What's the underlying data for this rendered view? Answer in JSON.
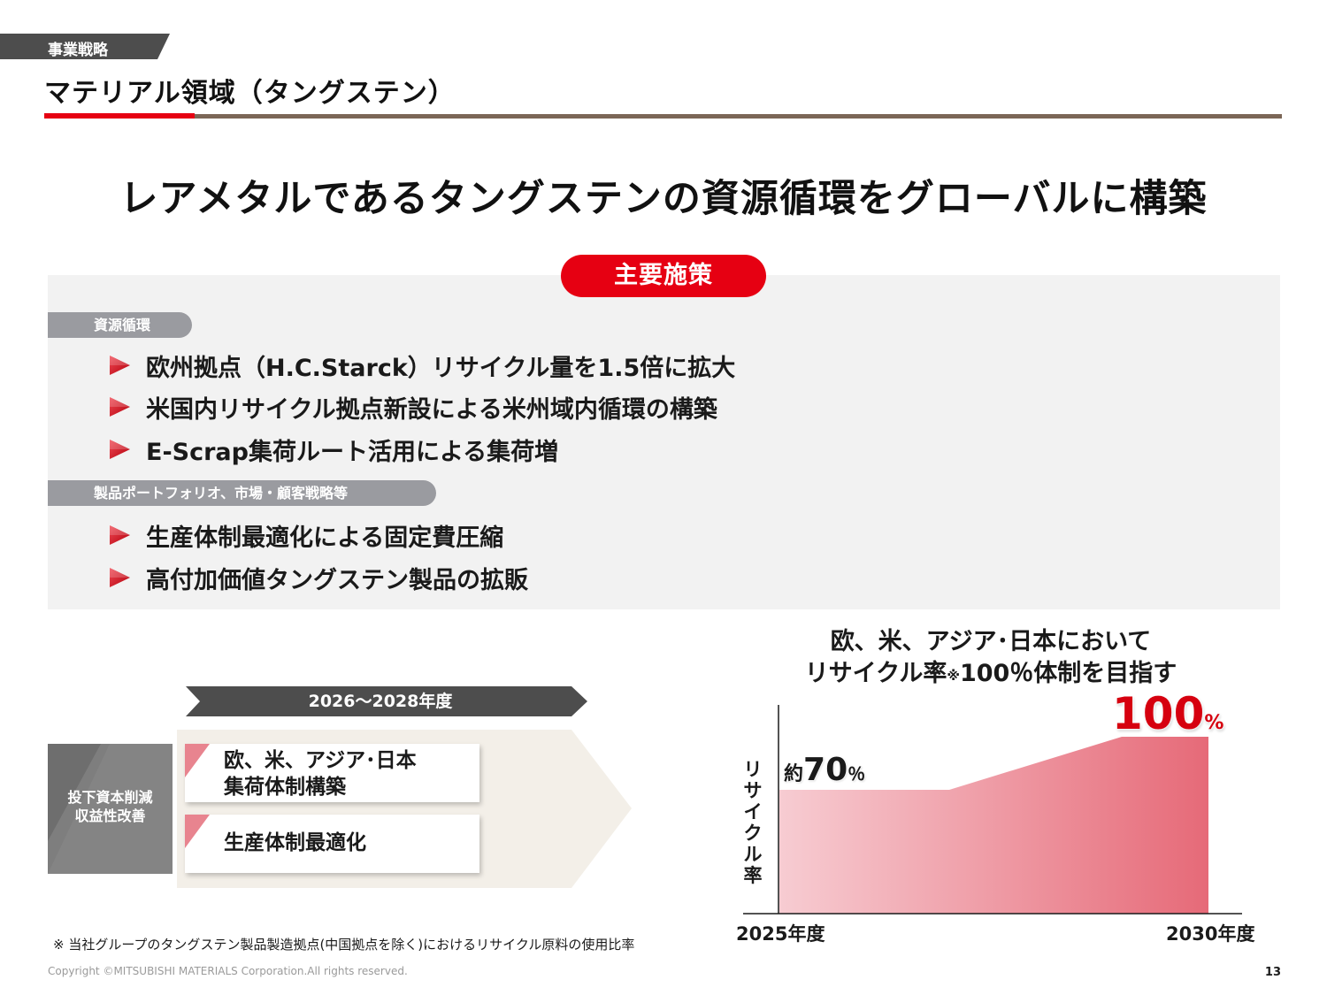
{
  "header": {
    "section_tag": "事業戦略",
    "title": "マテリアル領域（タングステン）"
  },
  "headline": "レアメタルであるタングステンの資源循環をグローバルに構築",
  "measures": {
    "pill_label": "主要施策",
    "groups": [
      {
        "label": "資源循環",
        "items": [
          "欧州拠点（H.C.Starck）リサイクル量を1.5倍に拡大",
          "米国内リサイクル拠点新設による米州域内循環の構築",
          "E-Scrap集荷ルート活用による集荷増"
        ]
      },
      {
        "label": "製品ポートフォリオ、市場・顧客戦略等",
        "items": [
          "生産体制最適化による固定費圧縮",
          "高付加価値タングステン製品の拡販"
        ]
      }
    ]
  },
  "roadmap": {
    "period": "2026～2028年度",
    "goal_line1": "投下資本削減",
    "goal_line2": "収益性改善",
    "steps": [
      {
        "line1": "欧、米、アジア･日本",
        "line2": "集荷体制構築"
      },
      {
        "line1": "生産体制最適化",
        "line2": ""
      }
    ]
  },
  "chart": {
    "title_line1": "欧、米、アジア･日本において",
    "title_line2_pre": "リサイクル率",
    "title_line2_mark": "※",
    "title_line2_post": "100％体制を目指す",
    "ylabel_chars": [
      "リ",
      "サ",
      "イ",
      "ク",
      "ル",
      "率"
    ],
    "start_label": {
      "prefix": "約",
      "value": "70",
      "unit": "％"
    },
    "end_label": {
      "value": "100",
      "unit": "%"
    }
  },
  "chart_data": {
    "type": "area",
    "title": "欧、米、アジア･日本において リサイクル率※100％体制を目指す",
    "ylabel": "リサイクル率",
    "xlabel": "",
    "x": [
      "2025年度",
      "2030年度"
    ],
    "series": [
      {
        "values": [
          70,
          100
        ]
      }
    ],
    "annotations": [
      "約70％",
      "100%"
    ],
    "colors": {
      "fill_start": "#f7ccd2",
      "fill_end": "#e66a78"
    },
    "grid": false
  },
  "footnote": "※ 当社グループのタングステン製品製造拠点(中国拠点を除く)におけるリサイクル原料の使用比率",
  "copyright": "Copyright ©MITSUBISHI MATERIALS Corporation.All rights reserved.",
  "page_number": "13",
  "colors": {
    "accent_red": "#e60012",
    "rule_brown": "#7b6656",
    "panel_gray": "#f2f2f2",
    "tag_gray": "#9a9ba0",
    "banner_dark": "#4d4d4d"
  },
  "icons": {
    "bullet": "red-triangle-bullet-icon"
  }
}
